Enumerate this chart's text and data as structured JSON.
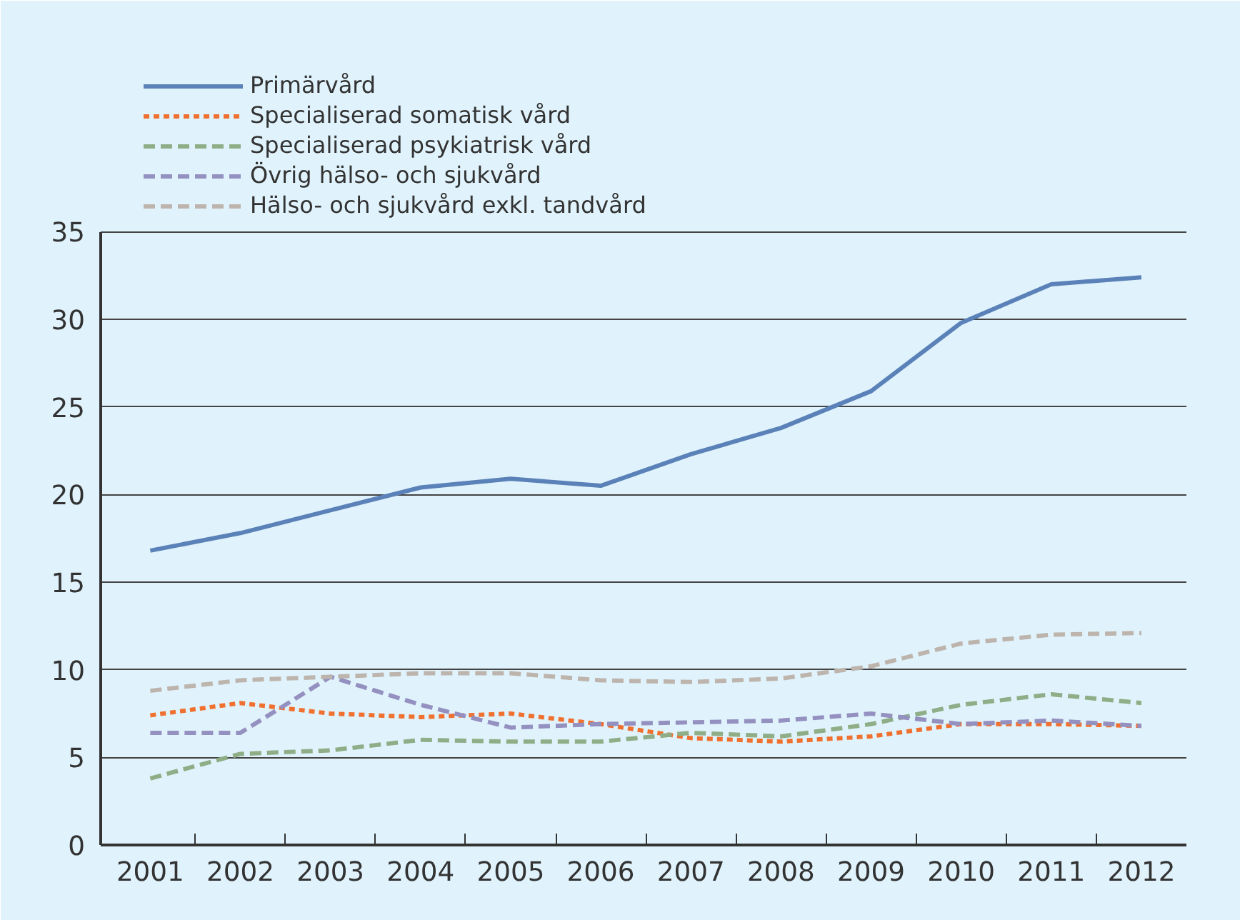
{
  "chart_data": {
    "type": "line",
    "categories": [
      "2001",
      "2002",
      "2003",
      "2004",
      "2005",
      "2006",
      "2007",
      "2008",
      "2009",
      "2010",
      "2011",
      "2012"
    ],
    "ylim": [
      0,
      35
    ],
    "yticks": [
      0,
      5,
      10,
      15,
      20,
      25,
      30,
      35
    ],
    "grid": "y",
    "legend": "top left",
    "series": [
      {
        "name": "Primärvård",
        "color": "#5b82b8",
        "line_style": "solid",
        "values": [
          16.8,
          17.8,
          19.1,
          20.4,
          20.9,
          20.5,
          22.3,
          23.8,
          25.9,
          29.8,
          32.0,
          32.4
        ]
      },
      {
        "name": "Specialiserad somatisk vård",
        "color": "#f07030",
        "line_style": "dotted",
        "values": [
          7.4,
          8.1,
          7.5,
          7.3,
          7.5,
          6.9,
          6.1,
          5.9,
          6.2,
          6.9,
          6.9,
          6.8
        ]
      },
      {
        "name": "Specialiserad psykiatrisk vård",
        "color": "#8fae88",
        "line_style": "dashed",
        "values": [
          3.8,
          5.2,
          5.4,
          6.0,
          5.9,
          5.9,
          6.4,
          6.2,
          6.9,
          8.0,
          8.6,
          8.1
        ]
      },
      {
        "name": "Övrig hälso- och sjukvård",
        "color": "#9490c0",
        "line_style": "dashed",
        "values": [
          6.4,
          6.4,
          9.6,
          8.0,
          6.7,
          6.9,
          7.0,
          7.1,
          7.5,
          6.9,
          7.1,
          6.8
        ]
      },
      {
        "name": "Hälso- och sjukvård exkl. tandvård",
        "color": "#bdb5ad",
        "line_style": "dashed",
        "values": [
          8.8,
          9.4,
          9.6,
          9.8,
          9.8,
          9.4,
          9.3,
          9.5,
          10.2,
          11.5,
          12.0,
          12.1
        ]
      }
    ]
  }
}
